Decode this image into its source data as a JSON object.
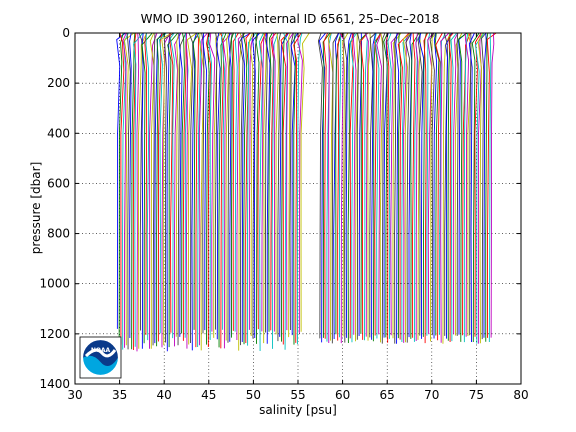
{
  "chart_data": {
    "type": "line",
    "title": "WMO ID 3901260, internal ID 6561, 25–Dec–2018",
    "xlabel": "salinity [psu]",
    "ylabel": "pressure [dbar]",
    "xlim": [
      30,
      80
    ],
    "ylim": [
      0,
      1400
    ],
    "y_reversed": true,
    "grid": true,
    "x_ticks": [
      30,
      35,
      40,
      45,
      50,
      55,
      60,
      65,
      70,
      75,
      80
    ],
    "y_ticks": [
      0,
      200,
      400,
      600,
      800,
      1000,
      1200,
      1400
    ],
    "x_tick_labels": [
      "30",
      "35",
      "40",
      "45",
      "50",
      "55",
      "60",
      "65",
      "70",
      "75",
      "80"
    ],
    "y_tick_labels": [
      "0",
      "200",
      "400",
      "600",
      "800",
      "1000",
      "1200",
      "1400"
    ],
    "profile_colors": [
      "#0000ff",
      "#008000",
      "#ff0000",
      "#00bfbf",
      "#bf00bf",
      "#bfbf00",
      "#404040"
    ],
    "profile_groups": [
      {
        "salinity_start": 34.8,
        "salinity_end": 55.6,
        "offset_step": 0.2,
        "max_pressure": [
          1180,
          1270
        ],
        "min_pressure_note": ""
      },
      {
        "salinity_start": 57.5,
        "salinity_end": 76.8,
        "offset_step": 0.2,
        "max_pressure": [
          1200,
          1240
        ],
        "min_pressure_note": ""
      }
    ],
    "series_note": ""
  },
  "logo": {
    "icon": "noaa-logo-icon",
    "text": "NOAA",
    "colors": {
      "outer": "#ffffff",
      "ring": "#0a2a7a",
      "sea": "#00a6e0",
      "sky": "#0a3a8a"
    }
  }
}
